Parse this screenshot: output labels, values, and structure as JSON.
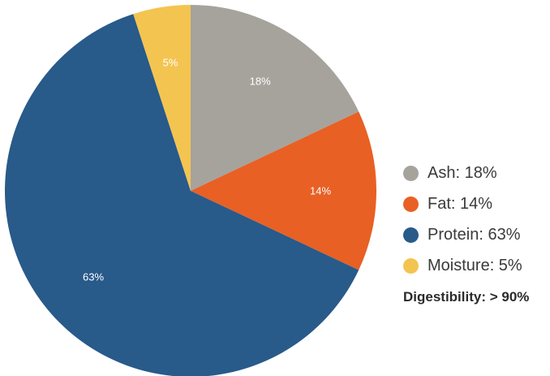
{
  "chart_data": {
    "type": "pie",
    "title": "",
    "start_angle_deg": 0,
    "direction": "clockwise",
    "categories": [
      "Ash",
      "Fat",
      "Protein",
      "Moisture"
    ],
    "values": [
      18,
      14,
      63,
      5
    ],
    "slice_labels": [
      "18%",
      "14%",
      "63%",
      "5%"
    ],
    "colors": [
      "#a6a39d",
      "#e86024",
      "#285a8a",
      "#f4c451"
    ],
    "legend_position": "right",
    "legend": [
      {
        "label": "Ash: 18%",
        "color": "#a6a39d"
      },
      {
        "label": "Fat: 14%",
        "color": "#e86024"
      },
      {
        "label": "Protein: 63%",
        "color": "#285a8a"
      },
      {
        "label": "Moisture: 5%",
        "color": "#f4c451"
      }
    ],
    "note": "Digestibility: > 90%"
  }
}
